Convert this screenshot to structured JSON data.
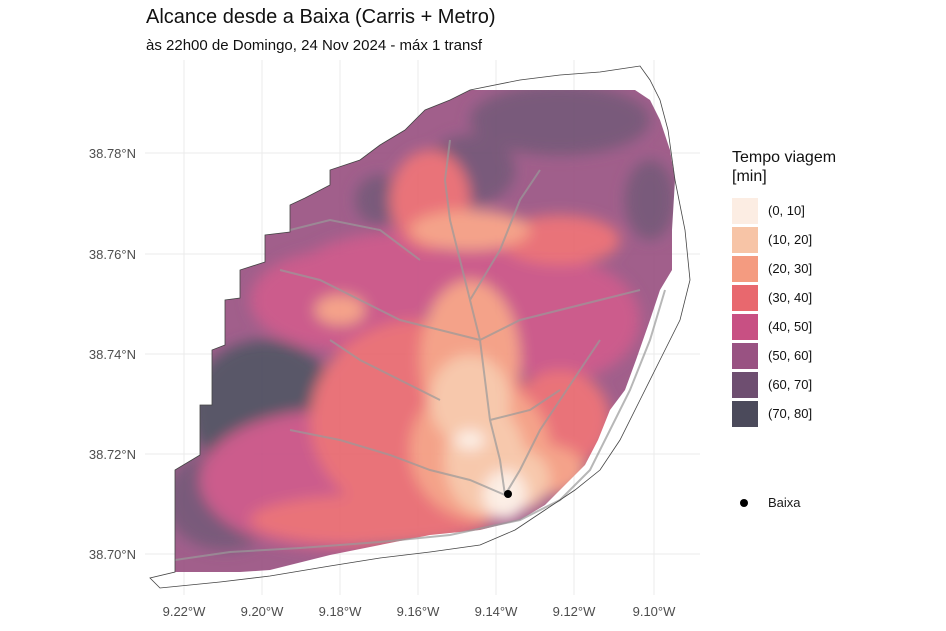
{
  "title": "Alcance desde a Baixa (Carris + Metro)",
  "subtitle": "às 22h00 de Domingo, 24 Nov 2024 - máx 1 transf",
  "y_axis_labels": [
    "38.78°N",
    "38.76°N",
    "38.74°N",
    "38.72°N",
    "38.70°N"
  ],
  "x_axis_labels": [
    "9.22°W",
    "9.20°W",
    "9.18°W",
    "9.16°W",
    "9.14°W",
    "9.12°W",
    "9.10°W"
  ],
  "legend": {
    "title_line1": "Tempo viagem",
    "title_line2": "[min]",
    "items": [
      {
        "label": "(0, 10]",
        "color": "#fcede3"
      },
      {
        "label": "(10, 20]",
        "color": "#f7c4a6"
      },
      {
        "label": "(20, 30]",
        "color": "#f49b80"
      },
      {
        "label": "(30, 40]",
        "color": "#e8686e"
      },
      {
        "label": "(40, 50]",
        "color": "#c85083"
      },
      {
        "label": "(50, 60]",
        "color": "#995282"
      },
      {
        "label": "(60, 70]",
        "color": "#6e4e70"
      },
      {
        "label": "(70, 80]",
        "color": "#4b4a5b"
      }
    ]
  },
  "point_legend": {
    "label": "Baixa",
    "color": "#000000"
  }
}
